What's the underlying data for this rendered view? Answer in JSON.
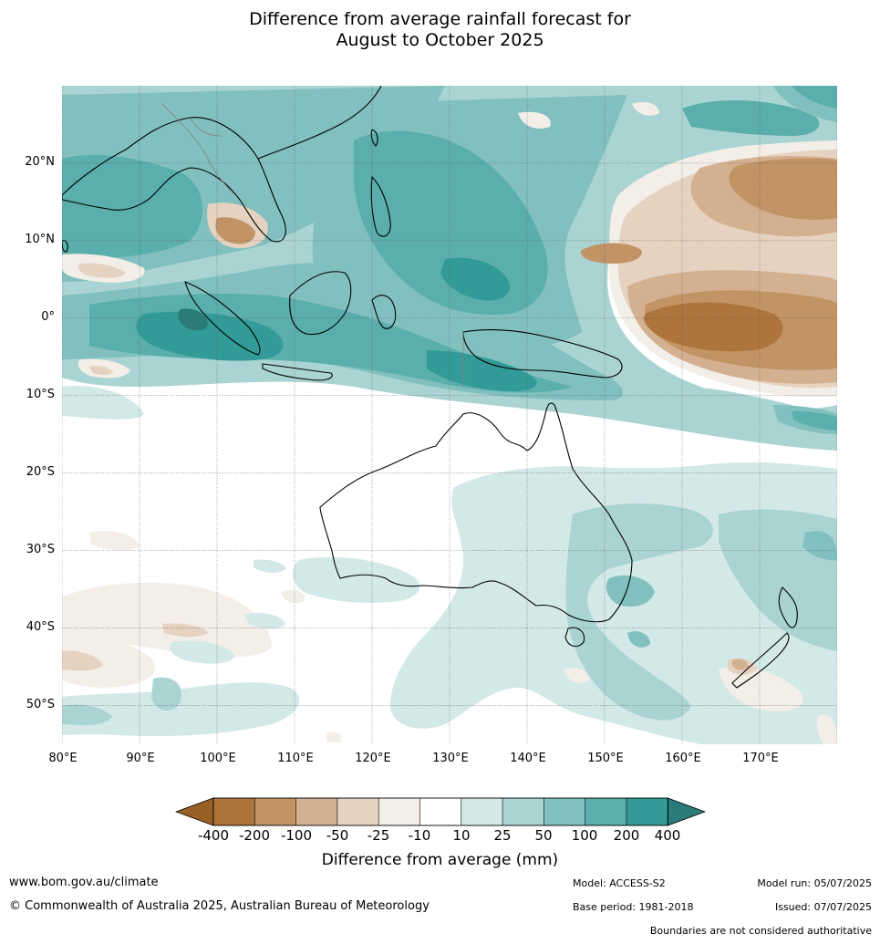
{
  "title_line1": "Difference from average rainfall forecast for",
  "title_line2": "August to October 2025",
  "map": {
    "lon_range": [
      80,
      180
    ],
    "lat_range": [
      -55,
      30
    ],
    "lon_labels": [
      "80°E",
      "90°E",
      "100°E",
      "110°E",
      "120°E",
      "130°E",
      "140°E",
      "150°E",
      "160°E",
      "170°E"
    ],
    "lat_labels": [
      "20°N",
      "10°N",
      "0°",
      "10°S",
      "20°S",
      "30°S",
      "40°S",
      "50°S"
    ],
    "colors": {
      "lt-400": "#9a5f27",
      "m400_m200": "#ad743b",
      "m200_m100": "#c29365",
      "m100_m50": "#d3b08f",
      "m50_m25": "#e5d2c0",
      "m25_m10": "#f3eee8",
      "m10_10": "#ffffff",
      "p10_25": "#d3e9e8",
      "p25_50": "#aad4d3",
      "p50_100": "#81c0bf",
      "p100_200": "#5aaeab",
      "p200_400": "#339b97",
      "gt400": "#2a7c78"
    }
  },
  "colorbar": {
    "ticks": [
      "-400",
      "-200",
      "-100",
      "-50",
      "-25",
      "-10",
      "10",
      "25",
      "50",
      "100",
      "200",
      "400"
    ],
    "title": "Difference from average (mm)"
  },
  "footer": {
    "website": "www.bom.gov.au/climate",
    "copyright": "© Commonwealth of Australia 2025, Australian Bureau of Meteorology",
    "model": "Model: ACCESS-S2",
    "base_period": "Base period: 1981-2018",
    "model_run": "Model run: 05/07/2025",
    "issued": "Issued: 07/07/2025",
    "disclaimer": "Boundaries are not considered authoritative"
  }
}
